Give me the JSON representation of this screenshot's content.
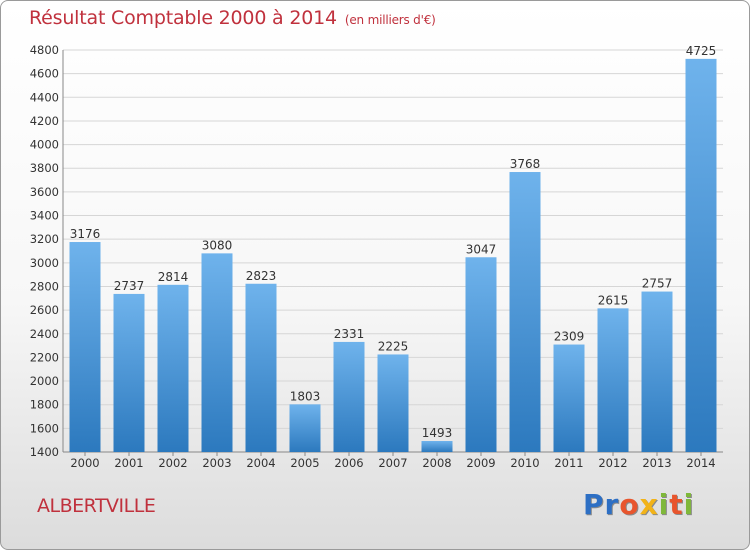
{
  "header": {
    "title": "Résultat Comptable 2000 à 2014",
    "subtitle": "(en milliers d'€)"
  },
  "footer": {
    "city": "ALBERTVILLE"
  },
  "logo": {
    "letters": [
      "P",
      "r",
      "o",
      "x",
      "i",
      "t",
      "i"
    ],
    "colors": [
      "#2d6fc4",
      "#2d6fc4",
      "#e8552d",
      "#f2b318",
      "#7fb83a",
      "#e8552d",
      "#7fb83a"
    ]
  },
  "chart_data": {
    "type": "bar",
    "title": "Résultat Comptable 2000 à 2014",
    "ylabel": "(en milliers d'€)",
    "xlabel": "",
    "categories": [
      "2000",
      "2001",
      "2002",
      "2003",
      "2004",
      "2005",
      "2006",
      "2007",
      "2008",
      "2009",
      "2010",
      "2011",
      "2012",
      "2013",
      "2014"
    ],
    "values": [
      3176,
      2737,
      2814,
      3080,
      2823,
      1803,
      2331,
      2225,
      1493,
      3047,
      3768,
      2309,
      2615,
      2757,
      4725
    ],
    "ylim": [
      1400,
      4800
    ],
    "yticks": [
      1400,
      1600,
      1800,
      2000,
      2200,
      2400,
      2600,
      2800,
      3000,
      3200,
      3400,
      3600,
      3800,
      4000,
      4200,
      4400,
      4600,
      4800
    ],
    "grid": true,
    "colors": {
      "bar_light": "#6fb3ec",
      "bar_dark": "#2c79be",
      "grid": "#d6d6d6",
      "text": "#333333"
    }
  }
}
